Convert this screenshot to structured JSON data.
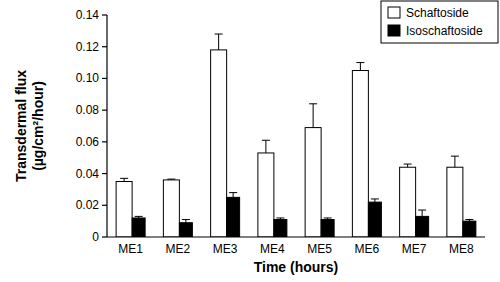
{
  "chart_data": {
    "type": "bar",
    "x_label": "Time (hours)",
    "y_label": "Transdermal flux (µg/cm²/hour)",
    "categories": [
      "ME1",
      "ME2",
      "ME3",
      "ME4",
      "ME5",
      "ME6",
      "ME7",
      "ME8"
    ],
    "series": [
      {
        "name": "Schaftoside",
        "color": "#ffffff",
        "values": [
          0.035,
          0.036,
          0.118,
          0.053,
          0.069,
          0.105,
          0.044,
          0.044
        ],
        "errors": [
          0.002,
          0.0005,
          0.01,
          0.008,
          0.015,
          0.005,
          0.002,
          0.007
        ]
      },
      {
        "name": "Isoschaftoside",
        "color": "#000000",
        "values": [
          0.012,
          0.009,
          0.025,
          0.011,
          0.011,
          0.022,
          0.013,
          0.01
        ],
        "errors": [
          0.001,
          0.002,
          0.003,
          0.001,
          0.001,
          0.002,
          0.004,
          0.001
        ]
      }
    ],
    "ylim": [
      0,
      0.14
    ],
    "yticks": [
      0,
      0.02,
      0.04,
      0.06,
      0.08,
      {
        "value": 0.1,
        "label": "0.10"
      },
      0.12,
      0.14
    ],
    "grid": false,
    "legend": "upper-right"
  }
}
